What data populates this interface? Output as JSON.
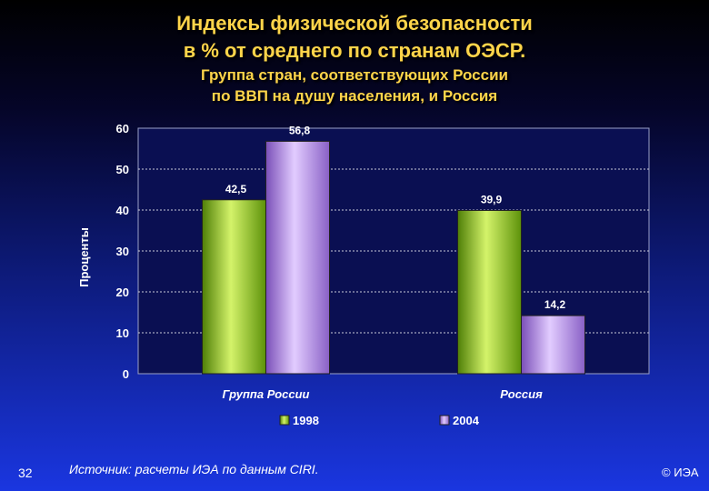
{
  "title_line1": "Индексы физической безопасности",
  "title_line2": "в % от среднего по странам ОЭСР.",
  "subtitle_line1": "Группа стран, соответствующих России",
  "subtitle_line2": "по ВВП на душу населения, и Россия",
  "slide_number": "32",
  "source": "Источник: расчеты ИЭА по данным CIRI.",
  "copyright": "© ИЭА",
  "colors": {
    "title": "#ffd54a",
    "series_1998": "#8fd11c",
    "series_2004": "#b98af0",
    "plot_bg": "#0a0f52"
  },
  "chart_data": {
    "type": "bar",
    "ylabel": "Проценты",
    "ylim": [
      0,
      60
    ],
    "yticks": [
      "0",
      "10",
      "20",
      "30",
      "40",
      "50",
      "60"
    ],
    "grid": true,
    "legend_position": "bottom",
    "categories": [
      "Группа России",
      "Россия"
    ],
    "series": [
      {
        "name": "1998",
        "values": [
          42.5,
          39.9
        ],
        "labels": [
          "42,5",
          "39,9"
        ]
      },
      {
        "name": "2004",
        "values": [
          56.8,
          14.2
        ],
        "labels": [
          "56,8",
          "14,2"
        ]
      }
    ]
  }
}
